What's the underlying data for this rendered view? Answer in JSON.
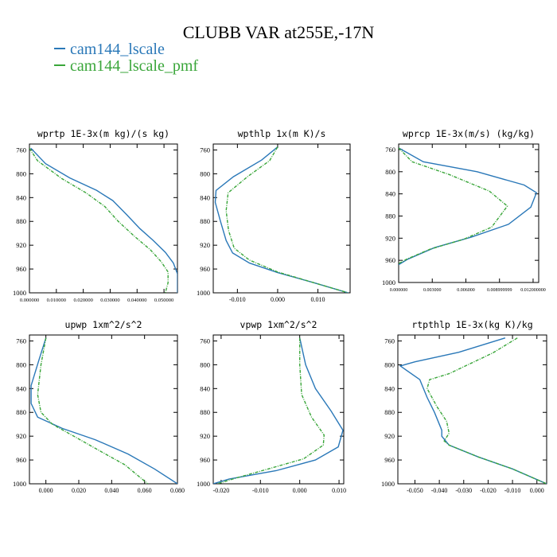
{
  "title": "CLUBB VAR at255E,-17N",
  "colors": {
    "series1": "#2a78b8",
    "series2": "#3aa63a"
  },
  "legend": [
    "cam144_lscale",
    "cam144_lscale_pmf"
  ],
  "chart_data": [
    {
      "type": "line",
      "title": "wprtp  1E-3x(m kg)/(s kg)",
      "xlim": [
        0.0,
        0.055
      ],
      "ylim": [
        1000,
        750
      ],
      "inverted_y": true,
      "xticks": [
        0.0,
        0.01,
        0.02,
        0.03,
        0.04,
        0.05
      ],
      "xtick_labels": [
        "0.000000",
        "0.010000",
        "0.020000",
        "0.030000",
        "0.040000",
        "0.050000"
      ],
      "yticks": [
        760,
        800,
        840,
        880,
        920,
        960,
        1000
      ],
      "series": [
        {
          "name": "cam144_lscale",
          "points": [
            [
              0.0005,
              757
            ],
            [
              0.006,
              783
            ],
            [
              0.015,
              807
            ],
            [
              0.025,
              828
            ],
            [
              0.031,
              845
            ],
            [
              0.036,
              868
            ],
            [
              0.041,
              892
            ],
            [
              0.046,
              912
            ],
            [
              0.0505,
              932
            ],
            [
              0.0535,
              950
            ],
            [
              0.055,
              968
            ],
            [
              0.055,
              985
            ],
            [
              0.055,
              1000
            ]
          ]
        },
        {
          "name": "cam144_lscale_pmf",
          "points": [
            [
              0.0,
              757
            ],
            [
              0.003,
              778
            ],
            [
              0.012,
              808
            ],
            [
              0.021,
              832
            ],
            [
              0.028,
              855
            ],
            [
              0.033,
              880
            ],
            [
              0.039,
              905
            ],
            [
              0.045,
              928
            ],
            [
              0.049,
              948
            ],
            [
              0.0515,
              965
            ],
            [
              0.0515,
              983
            ],
            [
              0.0505,
              1000
            ]
          ]
        }
      ]
    },
    {
      "type": "line",
      "title": "wpthlp  1x(m K)/s",
      "xlim": [
        -0.016,
        0.018
      ],
      "ylim": [
        1000,
        750
      ],
      "inverted_y": true,
      "xticks": [
        -0.01,
        0.0,
        0.01
      ],
      "xtick_labels": [
        "-0.010",
        "0.000",
        "0.010"
      ],
      "yticks": [
        760,
        800,
        840,
        880,
        920,
        960,
        1000
      ],
      "series": [
        {
          "name": "cam144_lscale",
          "points": [
            [
              0.0,
              755
            ],
            [
              -0.004,
              777
            ],
            [
              -0.011,
              805
            ],
            [
              -0.0153,
              828
            ],
            [
              -0.0155,
              848
            ],
            [
              -0.0142,
              880
            ],
            [
              -0.0128,
              912
            ],
            [
              -0.0112,
              933
            ],
            [
              -0.007,
              950
            ],
            [
              0.0,
              966
            ],
            [
              0.009,
              983
            ],
            [
              0.0175,
              1000
            ]
          ]
        },
        {
          "name": "cam144_lscale_pmf",
          "points": [
            [
              0.0,
              755
            ],
            [
              -0.002,
              778
            ],
            [
              -0.0075,
              805
            ],
            [
              -0.0123,
              832
            ],
            [
              -0.0128,
              862
            ],
            [
              -0.0122,
              895
            ],
            [
              -0.0108,
              925
            ],
            [
              -0.007,
              945
            ],
            [
              0.0,
              965
            ],
            [
              0.009,
              983
            ],
            [
              0.0175,
              1000
            ]
          ]
        }
      ]
    },
    {
      "type": "line",
      "title": "wprcp  1E-3x(m/s) (kg/kg)",
      "xlim": [
        0.0,
        0.0125
      ],
      "ylim": [
        1000,
        750
      ],
      "inverted_y": true,
      "xticks": [
        0.0,
        0.003,
        0.006,
        0.009,
        0.012
      ],
      "xtick_labels": [
        "0.000000",
        "0.003000",
        "0.006000",
        "0.008999999",
        "0.012000000"
      ],
      "yticks": [
        760,
        800,
        840,
        880,
        920,
        960,
        1000
      ],
      "series": [
        {
          "name": "cam144_lscale",
          "points": [
            [
              0.0,
              757
            ],
            [
              0.0022,
              782
            ],
            [
              0.007,
              800
            ],
            [
              0.0112,
              824
            ],
            [
              0.0123,
              838
            ],
            [
              0.0118,
              864
            ],
            [
              0.0098,
              895
            ],
            [
              0.0065,
              918
            ],
            [
              0.0032,
              937
            ],
            [
              0.0008,
              958
            ],
            [
              0.0,
              968
            ]
          ]
        },
        {
          "name": "cam144_lscale_pmf",
          "points": [
            [
              0.0,
              757
            ],
            [
              0.0012,
              782
            ],
            [
              0.0045,
              805
            ],
            [
              0.0081,
              835
            ],
            [
              0.0097,
              862
            ],
            [
              0.0083,
              900
            ],
            [
              0.0058,
              922
            ],
            [
              0.0028,
              940
            ],
            [
              0.0007,
              958
            ],
            [
              0.0,
              966
            ]
          ]
        }
      ]
    },
    {
      "type": "line",
      "title": "upwp  1xm^2/s^2",
      "xlim": [
        -0.01,
        0.08
      ],
      "ylim": [
        1000,
        750
      ],
      "inverted_y": true,
      "xticks": [
        0.0,
        0.02,
        0.04,
        0.06,
        0.08
      ],
      "xtick_labels": [
        "0.000",
        "0.020",
        "0.040",
        "0.060",
        "0.080"
      ],
      "yticks": [
        760,
        800,
        840,
        880,
        920,
        960,
        1000
      ],
      "series": [
        {
          "name": "cam144_lscale",
          "points": [
            [
              0.0,
              755
            ],
            [
              -0.004,
              790
            ],
            [
              -0.009,
              835
            ],
            [
              -0.009,
              865
            ],
            [
              -0.005,
              888
            ],
            [
              0.01,
              907
            ],
            [
              0.03,
              926
            ],
            [
              0.05,
              950
            ],
            [
              0.066,
              975
            ],
            [
              0.08,
              1000
            ]
          ]
        },
        {
          "name": "cam144_lscale_pmf",
          "points": [
            [
              0.0,
              755
            ],
            [
              -0.003,
              800
            ],
            [
              -0.005,
              850
            ],
            [
              -0.003,
              880
            ],
            [
              0.004,
              900
            ],
            [
              0.017,
              920
            ],
            [
              0.033,
              945
            ],
            [
              0.048,
              968
            ],
            [
              0.062,
              1000
            ]
          ]
        }
      ]
    },
    {
      "type": "line",
      "title": "vpwp  1xm^2/s^2",
      "xlim": [
        -0.022,
        0.0112
      ],
      "ylim": [
        1000,
        750
      ],
      "inverted_y": true,
      "xticks": [
        -0.02,
        -0.01,
        0.0,
        0.01
      ],
      "xtick_labels": [
        "-0.020",
        "-0.010",
        "0.000",
        "0.010"
      ],
      "yticks": [
        760,
        800,
        840,
        880,
        920,
        960,
        1000
      ],
      "series": [
        {
          "name": "cam144_lscale",
          "points": [
            [
              0.0,
              755
            ],
            [
              0.0015,
              800
            ],
            [
              0.004,
              840
            ],
            [
              0.008,
              878
            ],
            [
              0.011,
              910
            ],
            [
              0.0098,
              938
            ],
            [
              0.004,
              960
            ],
            [
              -0.006,
              978
            ],
            [
              -0.018,
              992
            ],
            [
              -0.022,
              1000
            ]
          ]
        },
        {
          "name": "cam144_lscale_pmf",
          "points": [
            [
              0.0,
              755
            ],
            [
              0.0,
              800
            ],
            [
              0.0005,
              850
            ],
            [
              0.003,
              888
            ],
            [
              0.0062,
              918
            ],
            [
              0.006,
              935
            ],
            [
              0.001,
              958
            ],
            [
              -0.008,
              975
            ],
            [
              -0.016,
              990
            ],
            [
              -0.021,
              1000
            ]
          ]
        }
      ]
    },
    {
      "type": "line",
      "title": "rtpthlp  1E-3x(kg K)/kg",
      "xlim": [
        -0.057,
        0.004
      ],
      "ylim": [
        1000,
        750
      ],
      "inverted_y": true,
      "xticks": [
        -0.05,
        -0.04,
        -0.03,
        -0.02,
        -0.01,
        0.0
      ],
      "xtick_labels": [
        "-0.050",
        "-0.040",
        "-0.030",
        "-0.020",
        "-0.010",
        "0.000"
      ],
      "yticks": [
        760,
        800,
        840,
        880,
        920,
        960,
        1000
      ],
      "series": [
        {
          "name": "cam144_lscale",
          "points": [
            [
              -0.013,
              755
            ],
            [
              -0.032,
              779
            ],
            [
              -0.05,
              795
            ],
            [
              -0.056,
              802
            ],
            [
              -0.048,
              825
            ],
            [
              -0.045,
              855
            ],
            [
              -0.042,
              880
            ],
            [
              -0.039,
              910
            ],
            [
              -0.039,
              920
            ],
            [
              -0.036,
              935
            ],
            [
              -0.024,
              955
            ],
            [
              -0.01,
              975
            ],
            [
              0.004,
              1000
            ]
          ]
        },
        {
          "name": "cam144_lscale_pmf",
          "points": [
            [
              -0.008,
              755
            ],
            [
              -0.018,
              780
            ],
            [
              -0.036,
              815
            ],
            [
              -0.044,
              825
            ],
            [
              -0.045,
              840
            ],
            [
              -0.041,
              870
            ],
            [
              -0.037,
              895
            ],
            [
              -0.036,
              915
            ],
            [
              -0.038,
              928
            ],
            [
              -0.036,
              935
            ],
            [
              -0.024,
              955
            ],
            [
              -0.01,
              975
            ],
            [
              0.004,
              1000
            ]
          ]
        }
      ]
    }
  ]
}
